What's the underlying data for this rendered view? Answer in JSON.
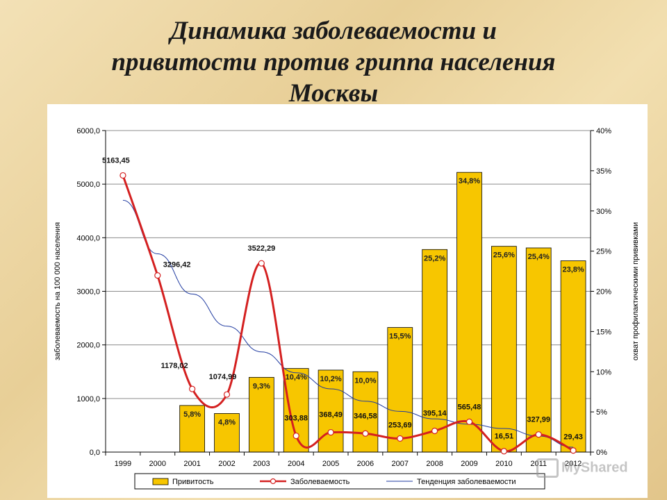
{
  "title_lines": [
    "Динамика заболеваемости и",
    "привитости против гриппа населения",
    "Москвы"
  ],
  "watermark": "MyShared",
  "chart_data": {
    "type": "bar",
    "categories": [
      "1999",
      "2000",
      "2001",
      "2002",
      "2003",
      "2004",
      "2005",
      "2006",
      "2007",
      "2008",
      "2009",
      "2010",
      "2011",
      "2012"
    ],
    "ylabel": "заболеваемость на 100 000 населения",
    "y2label": "охват профилактическими прививками",
    "ylim": [
      0,
      6000
    ],
    "y2lim": [
      0,
      40
    ],
    "yticks": [
      "0,0",
      "1000,0",
      "2000,0",
      "3000,0",
      "4000,0",
      "5000,0",
      "6000,0"
    ],
    "y2ticks": [
      "0%",
      "5%",
      "10%",
      "15%",
      "20%",
      "25%",
      "30%",
      "35%",
      "40%"
    ],
    "grid": true,
    "legend_position": "bottom",
    "series": [
      {
        "name": "Привитость",
        "type": "bar",
        "axis": "right",
        "color": "#f7c600",
        "values": [
          null,
          null,
          5.8,
          4.8,
          9.3,
          10.4,
          10.2,
          10.0,
          15.5,
          25.2,
          34.8,
          25.6,
          25.4,
          23.8
        ],
        "labels": [
          "",
          "",
          "5,8%",
          "4,8%",
          "9,3%",
          "10,4%",
          "10,2%",
          "10,0%",
          "15,5%",
          "25,2%",
          "34,8%",
          "25,6%",
          "25,4%",
          "23,8%"
        ]
      },
      {
        "name": "Заболеваемость",
        "type": "line",
        "axis": "left",
        "color": "#d42020",
        "values": [
          5163.45,
          3296.42,
          1178.02,
          1074.99,
          3522.29,
          303.88,
          368.49,
          346.58,
          253.69,
          395.14,
          565.48,
          16.51,
          327.99,
          29.43
        ],
        "labels": [
          "5163,45",
          "3296,42",
          "1178,02",
          "1074,99",
          "3522,29",
          "303,88",
          "368,49",
          "346,58",
          "253,69",
          "395,14",
          "565,48",
          "16,51",
          "327,99",
          "29,43"
        ]
      },
      {
        "name": "Тенденция заболеваемости",
        "type": "line",
        "axis": "left",
        "color": "#1f3aa0",
        "values": [
          4700,
          3700,
          2950,
          2350,
          1870,
          1480,
          1180,
          950,
          760,
          620,
          520,
          440,
          300,
          90
        ]
      }
    ]
  }
}
